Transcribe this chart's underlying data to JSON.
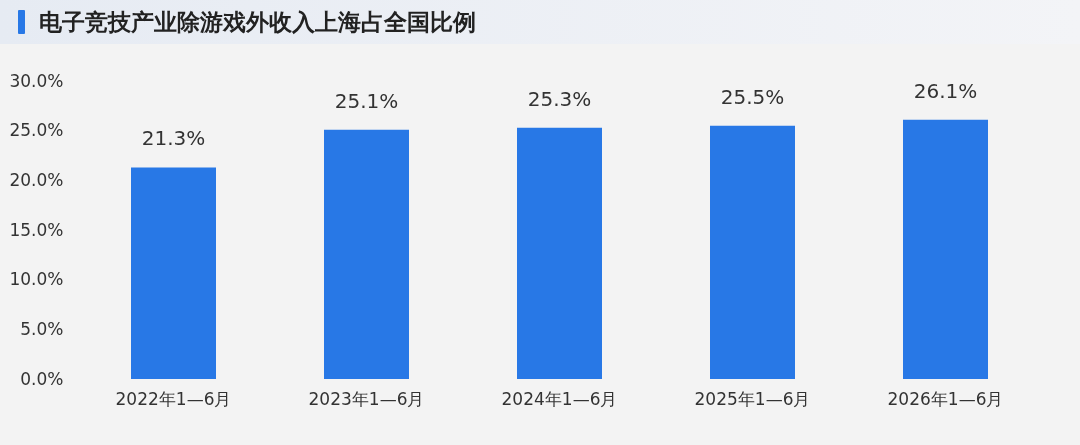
{
  "chart_data": {
    "type": "bar",
    "title": "电子竞技产业除游戏外收入上海占全国比例",
    "categories": [
      "2022年1—6月",
      "2023年1—6月",
      "2024年1—6月",
      "2025年1—6月",
      "2026年1—6月"
    ],
    "values": [
      21.3,
      25.1,
      25.3,
      25.5,
      26.1
    ],
    "value_labels": [
      "21.3%",
      "25.1%",
      "25.3%",
      "25.5%",
      "26.1%"
    ],
    "color": "#2878e6",
    "ylim": [
      0,
      30
    ],
    "yticks": [
      {
        "value": 0,
        "label": "0.0%"
      },
      {
        "value": 5,
        "label": "5.0%"
      },
      {
        "value": 10,
        "label": "10.0%"
      },
      {
        "value": 15,
        "label": "15.0%"
      },
      {
        "value": 20,
        "label": "20.0%"
      },
      {
        "value": 25,
        "label": "25.0%"
      },
      {
        "value": 30,
        "label": "30.0%"
      }
    ],
    "grid": false
  }
}
